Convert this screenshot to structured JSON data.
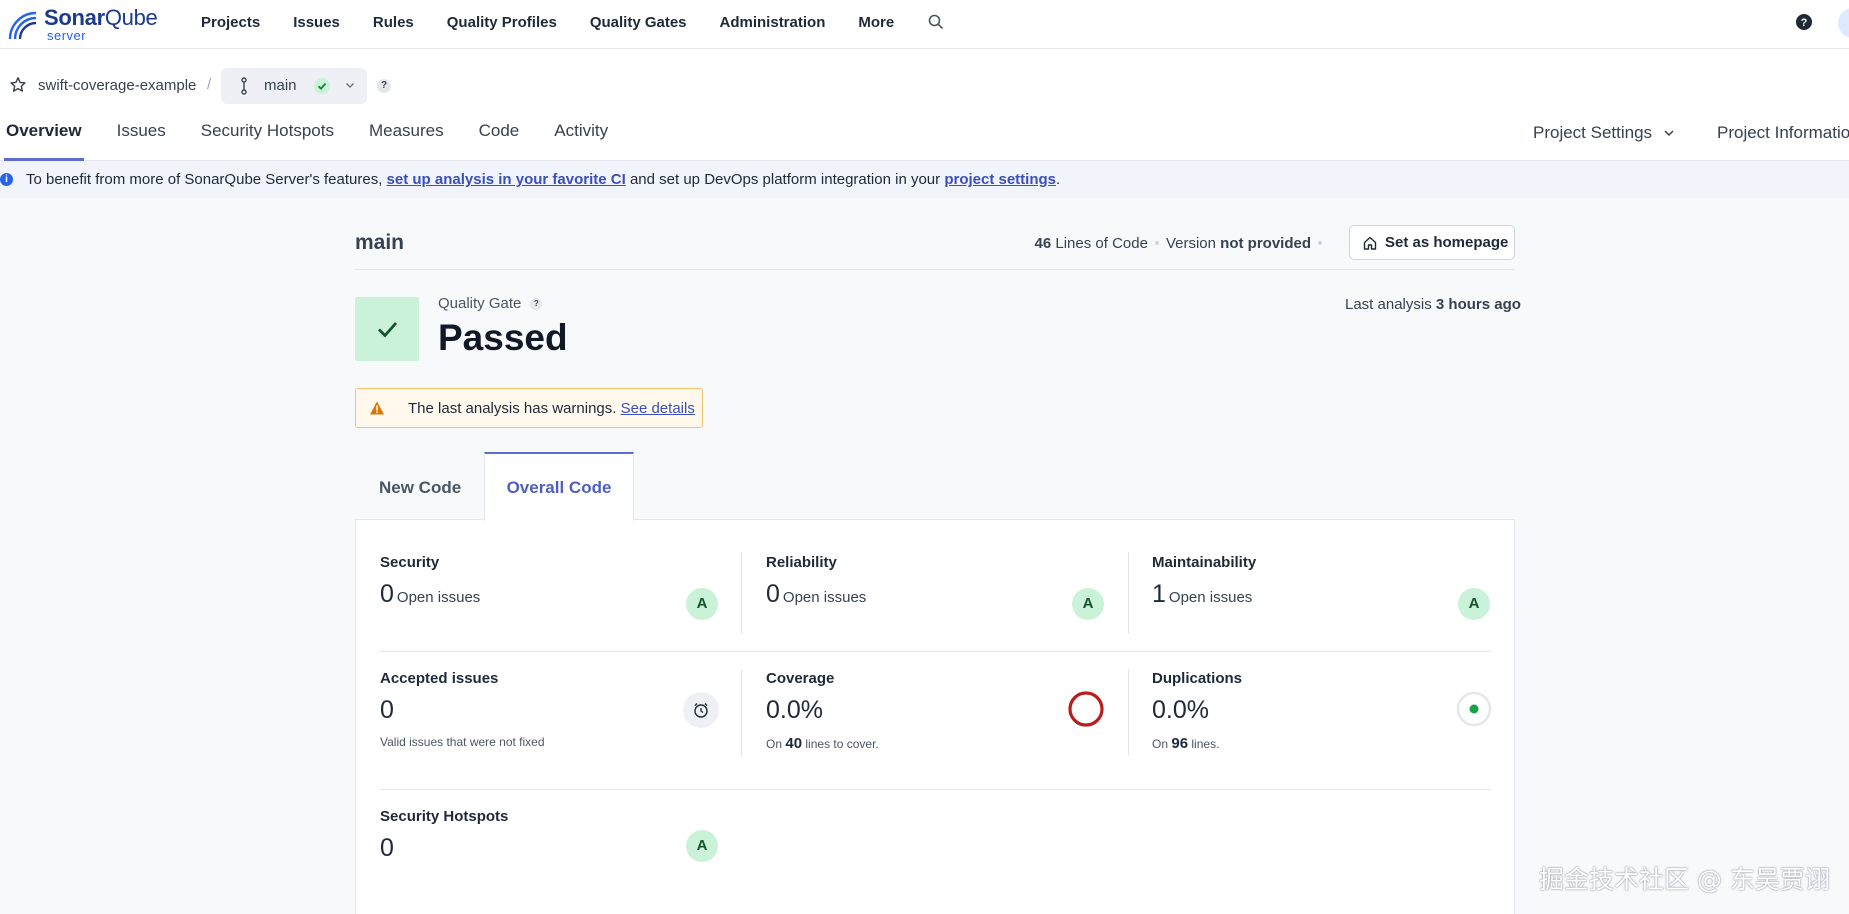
{
  "brand": {
    "title_a": "Sonar",
    "title_b": "Qube",
    "sub": "server"
  },
  "topnav": {
    "items": [
      "Projects",
      "Issues",
      "Rules",
      "Quality Profiles",
      "Quality Gates",
      "Administration",
      "More"
    ]
  },
  "project": {
    "name": "swift-coverage-example",
    "branch": "main",
    "separator": "/",
    "help": "?"
  },
  "tabs": [
    "Overview",
    "Issues",
    "Security Hotspots",
    "Measures",
    "Code",
    "Activity"
  ],
  "right_menu": {
    "settings": "Project Settings",
    "info": "Project Information"
  },
  "banner": {
    "icon": "i",
    "part1": "To benefit from more of SonarQube Server's features, ",
    "link1": "set up analysis in your favorite CI",
    "part2": " and set up DevOps platform integration in your ",
    "link2": "project settings",
    "part3": "."
  },
  "overview": {
    "branch_title": "main",
    "loc_value": "46",
    "loc_label": "Lines of Code",
    "version_label": "Version",
    "version_value": "not provided",
    "homepage_btn": "Set as homepage"
  },
  "quality_gate": {
    "label": "Quality Gate",
    "help": "?",
    "status": "Passed",
    "last_analysis_label": "Last analysis",
    "last_analysis_value": "3 hours ago"
  },
  "warning": {
    "text": "The last analysis has warnings.",
    "link": "See details"
  },
  "code_tabs": {
    "new": "New Code",
    "overall": "Overall Code",
    "active": "overall"
  },
  "metrics": {
    "security": {
      "title": "Security",
      "value": "0",
      "unit": "Open issues",
      "rating": "A"
    },
    "reliability": {
      "title": "Reliability",
      "value": "0",
      "unit": "Open issues",
      "rating": "A"
    },
    "maintainability": {
      "title": "Maintainability",
      "value": "1",
      "unit": "Open issues",
      "rating": "A"
    },
    "accepted": {
      "title": "Accepted issues",
      "value": "0",
      "sub": "Valid issues that were not fixed"
    },
    "coverage": {
      "title": "Coverage",
      "value": "0.0%",
      "sub_prefix": "On",
      "sub_num": "40",
      "sub_suffix": "lines to cover.",
      "percent": 0.0
    },
    "duplications": {
      "title": "Duplications",
      "value": "0.0%",
      "sub_prefix": "On",
      "sub_num": "96",
      "sub_suffix": "lines.",
      "percent": 0.0
    },
    "hotspots": {
      "title": "Security Hotspots",
      "value": "0",
      "rating": "A"
    }
  },
  "colors": {
    "accent": "#5d6cd0",
    "pass": "#c9f2d8",
    "coverage_ring": "#b91c1c",
    "dup_dot": "#16a34a"
  },
  "watermark": "掘金技术社区 @ 东吴贾诩"
}
